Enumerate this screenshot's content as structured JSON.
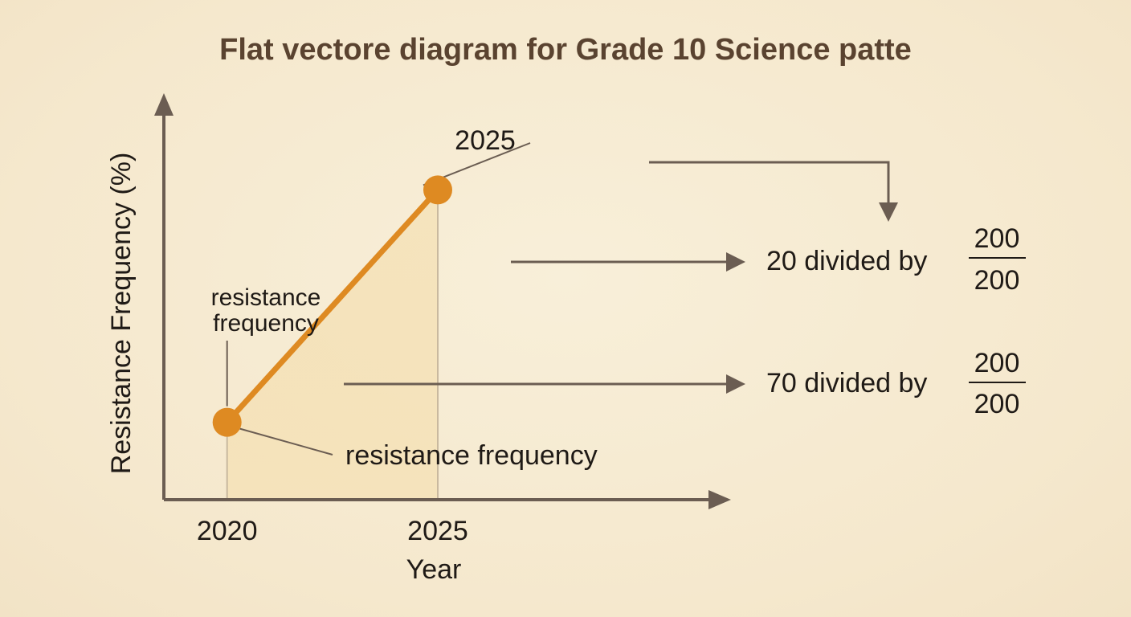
{
  "title": "Flat vectore diagram for Grade 10  Science patte",
  "colors": {
    "background": "#f5e8cd",
    "axis": "#6b5d52",
    "line": "#de8a22",
    "point": "#de8a22",
    "area": "#f2d9a4",
    "title": "#5a4330",
    "text": "#1f1a16"
  },
  "annotations": {
    "top_point_label": "2025",
    "left_label_line1": "resistance",
    "left_label_line2": "frequency",
    "bottom_label": "resistance frequency",
    "callout_upper": {
      "text": "20 divided by",
      "numerator": "200",
      "denominator": "200"
    },
    "callout_lower": {
      "text": "70 divided by",
      "numerator": "200",
      "denominator": "200"
    }
  },
  "chart_data": {
    "type": "line",
    "title": "Flat vectore diagram for Grade 10  Science patte",
    "xlabel": "Year",
    "ylabel": "Resistance Frequency (%)",
    "x_tick_labels": [
      "2020",
      "2025"
    ],
    "series": [
      {
        "x": [
          2020,
          2025
        ],
        "y": [
          20,
          80
        ]
      }
    ],
    "xlim": [
      2018.5,
      2031.5
    ],
    "ylim": [
      0,
      100
    ],
    "area_fill": true,
    "grid": false,
    "legend": "none"
  }
}
